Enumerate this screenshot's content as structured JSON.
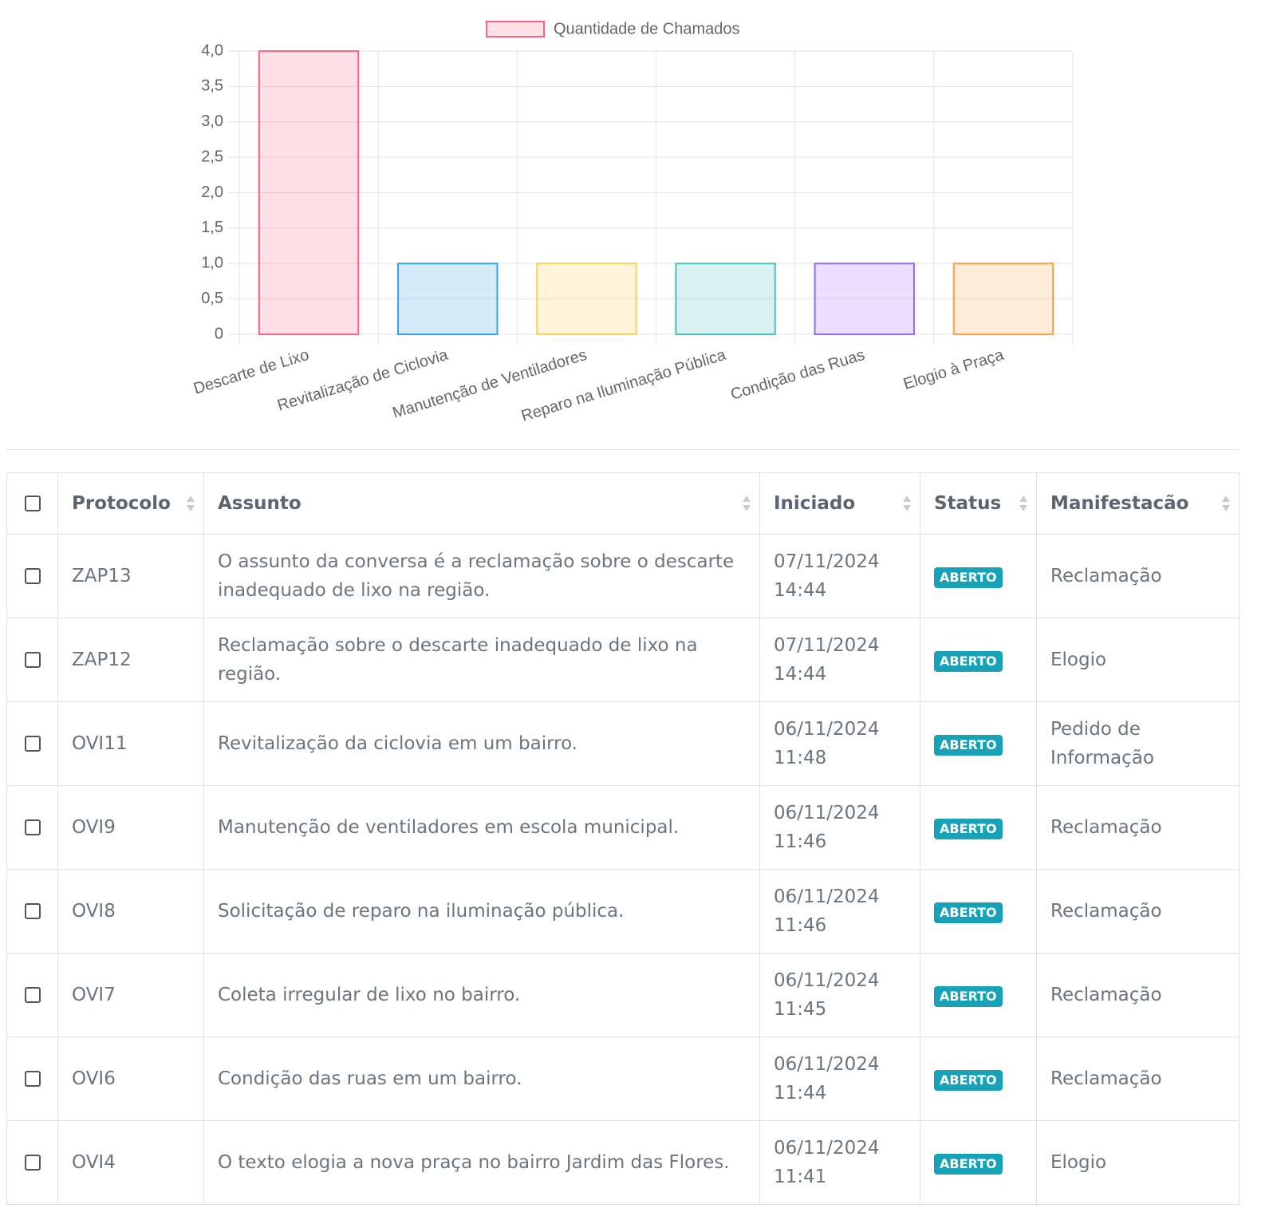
{
  "chart_data": {
    "type": "bar",
    "categories": [
      "Descarte de Lixo",
      "Revitalização de Ciclovia",
      "Manutenção de Ventiladores",
      "Reparo na Iluminação Pública",
      "Condição das Ruas",
      "Elogio à Praça"
    ],
    "series": [
      {
        "name": "Quantidade de Chamados",
        "values": [
          4,
          1,
          1,
          1,
          1,
          1
        ],
        "colors": [
          "#ff6384",
          "#36a2eb",
          "#ffce56",
          "#4bc0c0",
          "#9966ff",
          "#ff9f40"
        ]
      }
    ],
    "ylim": [
      0,
      4
    ],
    "yticks": [
      0,
      {
        "value": 0.5,
        "label": "0,5"
      },
      {
        "value": 1,
        "label": "1,0"
      },
      {
        "value": 1.5,
        "label": "1,5"
      },
      {
        "value": 2,
        "label": "2,0"
      },
      {
        "value": 2.5,
        "label": "2,5"
      },
      {
        "value": 3,
        "label": "3,0"
      },
      {
        "value": 3.5,
        "label": "3,5"
      },
      {
        "value": 4,
        "label": "4,0"
      }
    ],
    "grid": true,
    "legend": "top"
  },
  "table": {
    "headers": [
      "Protocolo",
      "Assunto",
      "Iniciado",
      "Status",
      "Manifestacão"
    ],
    "rows": [
      [
        "ZAP13",
        "O assunto da conversa é a reclamação sobre o descarte inadequado de lixo na região.",
        "07/11/2024 14:44",
        "ABERTO",
        "Reclamação"
      ],
      [
        "ZAP12",
        "Reclamação sobre o descarte inadequado de lixo na região.",
        "07/11/2024 14:44",
        "ABERTO",
        "Elogio"
      ],
      [
        "OVI11",
        "Revitalização da ciclovia em um bairro.",
        "06/11/2024 11:48",
        "ABERTO",
        "Pedido de Informação"
      ],
      [
        "OVI9",
        "Manutenção de ventiladores em escola municipal.",
        "06/11/2024 11:46",
        "ABERTO",
        "Reclamação"
      ],
      [
        "OVI8",
        "Solicitação de reparo na iluminação pública.",
        "06/11/2024 11:46",
        "ABERTO",
        "Reclamação"
      ],
      [
        "OVI7",
        "Coleta irregular de lixo no bairro.",
        "06/11/2024 11:45",
        "ABERTO",
        "Reclamação"
      ],
      [
        "OVI6",
        "Condição das ruas em um bairro.",
        "06/11/2024 11:44",
        "ABERTO",
        "Reclamação"
      ],
      [
        "OVI4",
        "O texto elogia a nova praça no bairro Jardim das Flores.",
        "06/11/2024 11:41",
        "ABERTO",
        "Elogio"
      ]
    ]
  }
}
